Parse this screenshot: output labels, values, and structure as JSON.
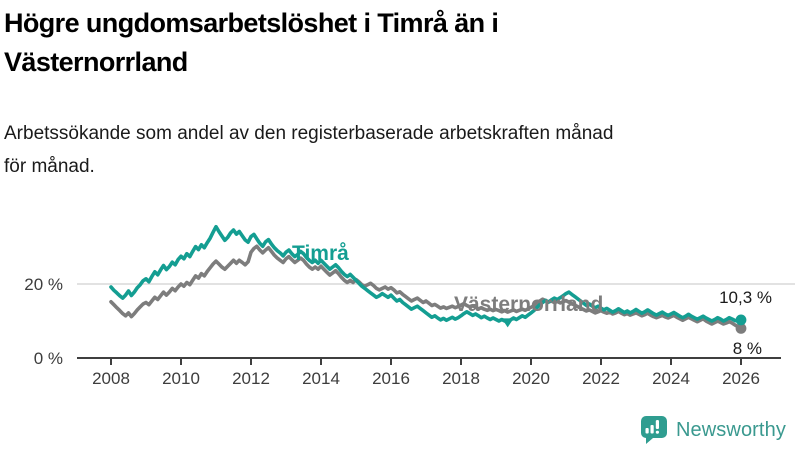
{
  "header": {
    "title_lines": [
      "Högre ungdomsarbetslöshet i Timrå än i",
      "Västernorrland"
    ],
    "subtitle_lines": [
      "Arbetssökande som andel av den registerbaserade arbetskraften månad",
      "för månad."
    ]
  },
  "chart_data": {
    "type": "line",
    "title": "Högre ungdomsarbetslöshet i Timrå än i Västernorrland",
    "subtitle": "Arbetssökande som andel av den registerbaserade arbetskraften månad för månad.",
    "x_unit": "month",
    "x_start_year": 2008,
    "x_end_year": 2026,
    "x_ticks": [
      2008,
      2010,
      2012,
      2014,
      2016,
      2018,
      2020,
      2022,
      2024,
      2026
    ],
    "y_ticks": [
      {
        "value": 0,
        "label": "0 %"
      },
      {
        "value": 20,
        "label": "20 %"
      }
    ],
    "ylim": [
      0,
      40
    ],
    "grid_values": [
      20
    ],
    "grid_color": "#d9d9d9",
    "axis_color": "#3f3f3f",
    "tick_label_color": "#3d3d3d",
    "series": [
      {
        "name": "Timrå",
        "color": "#149e92",
        "end_label": "10,3 %",
        "end_value": 10.3,
        "min_marker": true,
        "values": [
          19.2,
          18.3,
          17.6,
          16.8,
          16.2,
          17.0,
          18.1,
          16.9,
          17.8,
          19.0,
          19.8,
          20.9,
          21.4,
          20.6,
          22.0,
          23.3,
          22.5,
          23.8,
          25.0,
          23.9,
          24.7,
          25.9,
          25.2,
          26.6,
          27.5,
          26.8,
          28.2,
          27.4,
          28.8,
          30.1,
          29.3,
          30.6,
          29.8,
          31.2,
          32.4,
          34.0,
          35.5,
          34.2,
          33.0,
          31.8,
          32.6,
          33.8,
          34.6,
          33.5,
          34.2,
          33.0,
          31.9,
          31.3,
          32.8,
          33.4,
          32.2,
          31.0,
          30.2,
          31.4,
          32.0,
          30.8,
          29.8,
          29.0,
          28.4,
          27.6,
          28.6,
          29.2,
          28.2,
          27.4,
          28.0,
          28.8,
          28.2,
          27.2,
          26.4,
          25.8,
          26.4,
          25.6,
          26.4,
          25.6,
          24.8,
          24.0,
          24.6,
          25.2,
          24.4,
          23.4,
          22.6,
          22.0,
          22.6,
          21.8,
          21.0,
          20.2,
          19.4,
          18.8,
          18.2,
          17.6,
          17.0,
          16.4,
          16.8,
          17.4,
          16.9,
          16.4,
          17.0,
          16.2,
          15.4,
          15.8,
          15.0,
          14.4,
          13.8,
          13.2,
          13.6,
          14.0,
          13.4,
          12.8,
          12.2,
          11.6,
          11.0,
          11.4,
          10.8,
          10.3,
          10.7,
          10.2,
          10.6,
          11.0,
          10.5,
          10.9,
          11.4,
          12.0,
          12.5,
          12.0,
          11.5,
          11.9,
          11.4,
          10.9,
          11.3,
          10.8,
          10.4,
          10.8,
          10.4,
          10.0,
          10.4,
          10.0,
          9.9,
          10.3,
          10.8,
          10.4,
          10.9,
          11.4,
          11.0,
          11.6,
          12.2,
          12.8,
          13.6,
          14.4,
          15.0,
          15.6,
          15.1,
          15.7,
          16.2,
          15.8,
          16.3,
          16.8,
          17.4,
          17.8,
          17.2,
          16.6,
          16.0,
          15.4,
          14.8,
          14.2,
          14.6,
          14.0,
          13.6,
          14.0,
          13.5,
          13.0,
          13.4,
          12.9,
          12.4,
          12.8,
          13.3,
          12.8,
          12.3,
          12.7,
          12.2,
          12.6,
          13.1,
          12.6,
          12.1,
          12.5,
          13.0,
          12.5,
          12.0,
          11.6,
          12.0,
          12.4,
          11.9,
          11.5,
          11.9,
          12.3,
          11.8,
          11.3,
          10.9,
          11.3,
          11.8,
          11.3,
          10.9,
          10.5,
          10.9,
          11.3,
          10.8,
          10.4,
          10.0,
          10.4,
          10.9,
          10.5,
          10.0,
          10.4,
          10.9,
          10.5,
          10.1,
          10.0,
          10.3
        ]
      },
      {
        "name": "Västernorrland",
        "color": "#7d7d7d",
        "end_label": "8 %",
        "end_value": 8.0,
        "min_marker": false,
        "values": [
          15.2,
          14.4,
          13.6,
          12.8,
          12.0,
          11.4,
          12.2,
          11.2,
          12.0,
          13.0,
          13.8,
          14.6,
          15.0,
          14.4,
          15.4,
          16.4,
          15.8,
          16.8,
          17.8,
          17.0,
          17.8,
          18.8,
          18.2,
          19.2,
          20.0,
          19.4,
          20.4,
          19.8,
          21.0,
          22.2,
          21.6,
          22.8,
          22.2,
          23.4,
          24.4,
          25.4,
          26.2,
          25.4,
          24.6,
          24.0,
          24.8,
          25.6,
          26.4,
          25.6,
          26.4,
          25.8,
          25.2,
          26.0,
          28.6,
          29.6,
          30.2,
          29.2,
          28.4,
          29.2,
          29.8,
          28.8,
          27.8,
          27.0,
          26.4,
          25.8,
          26.8,
          27.4,
          26.6,
          25.8,
          26.4,
          27.0,
          26.4,
          25.4,
          24.6,
          24.0,
          24.6,
          24.0,
          24.8,
          24.0,
          23.2,
          22.4,
          23.0,
          23.6,
          22.8,
          21.8,
          21.0,
          20.4,
          21.0,
          20.4,
          21.2,
          20.6,
          19.8,
          19.4,
          19.8,
          20.2,
          19.6,
          18.8,
          18.4,
          18.8,
          19.2,
          18.6,
          19.0,
          18.4,
          17.6,
          17.9,
          17.2,
          16.6,
          16.0,
          15.4,
          15.8,
          16.2,
          15.6,
          15.0,
          15.4,
          14.8,
          14.2,
          14.5,
          14.0,
          13.5,
          13.8,
          13.4,
          13.7,
          14.0,
          13.6,
          13.9,
          14.3,
          14.7,
          14.2,
          13.8,
          14.1,
          13.7,
          13.3,
          13.6,
          13.2,
          12.9,
          13.2,
          12.8,
          13.1,
          12.8,
          12.5,
          12.8,
          12.4,
          12.7,
          13.0,
          12.6,
          12.9,
          13.2,
          12.9,
          13.3,
          13.7,
          14.1,
          14.8,
          15.4,
          15.9,
          15.5,
          15.1,
          15.4,
          15.0,
          15.3,
          14.9,
          15.2,
          15.5,
          15.1,
          14.7,
          14.3,
          13.9,
          13.5,
          13.1,
          12.7,
          13.0,
          12.6,
          12.2,
          12.5,
          12.8,
          12.4,
          12.1,
          12.4,
          11.9,
          12.2,
          12.6,
          12.1,
          11.7,
          12.0,
          11.6,
          11.9,
          12.2,
          11.8,
          11.4,
          11.7,
          12.1,
          11.6,
          11.2,
          10.9,
          11.2,
          11.5,
          11.1,
          10.8,
          11.2,
          11.5,
          11.0,
          10.6,
          10.2,
          10.6,
          11.0,
          10.6,
          10.2,
          9.8,
          10.2,
          10.6,
          10.0,
          9.6,
          9.2,
          9.6,
          10.0,
          9.6,
          9.2,
          9.5,
          9.8,
          9.4,
          8.9,
          8.5,
          8.0
        ]
      }
    ],
    "legend_position": "inline-labels",
    "grid": "horizontal-only"
  },
  "footer": {
    "logo_text": "Newsworthy",
    "logo_icon": "speech-bubble-bar-chart-icon",
    "logo_icon_color": "#2f9d90",
    "logo_text_color": "#3a998f"
  }
}
